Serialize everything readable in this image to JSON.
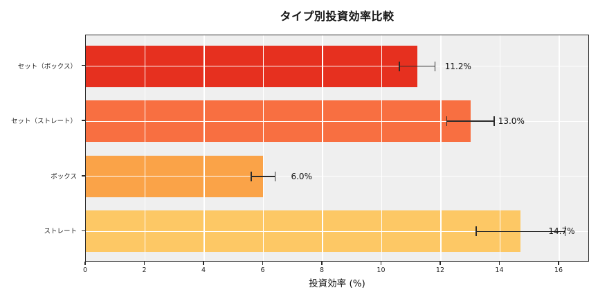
{
  "chart_data": {
    "type": "bar",
    "orientation": "horizontal",
    "title": "タイプ別投資効率比較",
    "xlabel": "投資効率 (%)",
    "ylabel": "",
    "categories": [
      "セット（ボックス）",
      "セット（ストレート）",
      "ボックス",
      "ストレート"
    ],
    "values": [
      11.2,
      13.0,
      6.0,
      14.7
    ],
    "error_bars": [
      0.6,
      0.8,
      0.4,
      1.5
    ],
    "value_labels": [
      "11.2%",
      "13.0%",
      "6.0%",
      "14.7%"
    ],
    "bar_colors": [
      "#e6301f",
      "#f86f41",
      "#faa348",
      "#fdc865"
    ],
    "xticks": [
      0,
      2,
      4,
      6,
      8,
      10,
      12,
      14,
      16
    ],
    "xtick_labels": [
      "0",
      "2",
      "4",
      "6",
      "8",
      "10",
      "12",
      "14",
      "16"
    ],
    "xlim": [
      0,
      17.03
    ],
    "grid": true,
    "grid_color": "#ffffff",
    "plot_background": "#efefef",
    "error_bar_color": "#2b2b2b",
    "legend": "none"
  }
}
